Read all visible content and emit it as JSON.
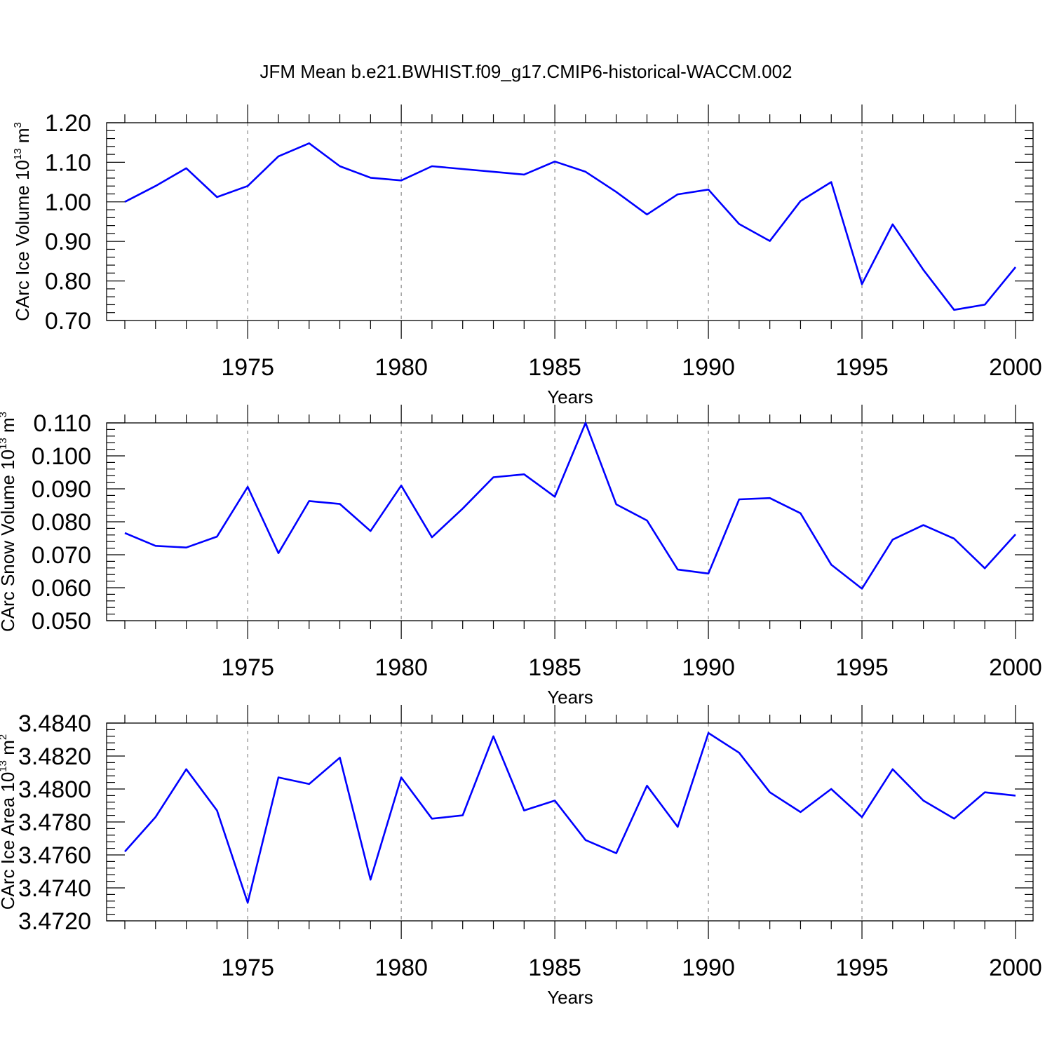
{
  "figure": {
    "title": "JFM Mean b.e21.BWHIST.f09_g17.CMIP6-historical-WACCM.002"
  },
  "colors": {
    "series": "#0000ff",
    "axis": "#000000",
    "grid": "#888888"
  },
  "chart_data": [
    {
      "type": "line",
      "id": "ice-volume",
      "title": "",
      "xlabel": "Years",
      "ylabel": "CArc Ice Volume 10",
      "ylabel_sup": "13",
      "ylabel_unit": "m",
      "ylabel_unit_sup": "3",
      "xlim": [
        1971,
        2000
      ],
      "ylim": [
        0.7,
        1.2
      ],
      "y_decimals": 2,
      "yticks": [
        0.7,
        0.8,
        0.9,
        1.0,
        1.1,
        1.2
      ],
      "xticks": [
        1975,
        1980,
        1985,
        1990,
        1995,
        2000
      ],
      "x_grid": true,
      "x": [
        1971,
        1972,
        1973,
        1974,
        1975,
        1976,
        1977,
        1978,
        1979,
        1980,
        1981,
        1982,
        1983,
        1984,
        1985,
        1986,
        1987,
        1988,
        1989,
        1990,
        1991,
        1992,
        1993,
        1994,
        1995,
        1996,
        1997,
        1998,
        1999,
        2000
      ],
      "series": [
        {
          "name": "CArc Ice Volume",
          "values": [
            1.0,
            1.04,
            1.085,
            1.012,
            1.04,
            1.115,
            1.148,
            1.09,
            1.061,
            1.054,
            1.09,
            1.083,
            1.076,
            1.069,
            1.102,
            1.076,
            1.025,
            0.968,
            1.019,
            1.031,
            0.944,
            0.901,
            1.002,
            1.05,
            0.792,
            0.943,
            0.828,
            0.727,
            0.74,
            0.835
          ]
        }
      ]
    },
    {
      "type": "line",
      "id": "snow-volume",
      "title": "",
      "xlabel": "Years",
      "ylabel": "CArc Snow Volume 10",
      "ylabel_sup": "13",
      "ylabel_unit": "m",
      "ylabel_unit_sup": "3",
      "xlim": [
        1971,
        2000
      ],
      "ylim": [
        0.05,
        0.11
      ],
      "y_decimals": 3,
      "yticks": [
        0.05,
        0.06,
        0.07,
        0.08,
        0.09,
        0.1,
        0.11
      ],
      "xticks": [
        1975,
        1980,
        1985,
        1990,
        1995,
        2000
      ],
      "x_grid": true,
      "x": [
        1971,
        1972,
        1973,
        1974,
        1975,
        1976,
        1977,
        1978,
        1979,
        1980,
        1981,
        1982,
        1983,
        1984,
        1985,
        1986,
        1987,
        1988,
        1989,
        1990,
        1991,
        1992,
        1993,
        1994,
        1995,
        1996,
        1997,
        1998,
        1999,
        2000
      ],
      "series": [
        {
          "name": "CArc Snow Volume",
          "values": [
            0.0766,
            0.0727,
            0.0722,
            0.0755,
            0.0906,
            0.0705,
            0.0863,
            0.0854,
            0.0772,
            0.091,
            0.0753,
            0.084,
            0.0935,
            0.0944,
            0.0876,
            0.11,
            0.0853,
            0.0804,
            0.0655,
            0.0643,
            0.0868,
            0.0872,
            0.0826,
            0.067,
            0.0597,
            0.0746,
            0.079,
            0.0749,
            0.0659,
            0.0762
          ]
        }
      ]
    },
    {
      "type": "line",
      "id": "ice-area",
      "title": "",
      "xlabel": "Years",
      "ylabel": "CArc Ice Area 10",
      "ylabel_sup": "13",
      "ylabel_unit": "m",
      "ylabel_unit_sup": "2",
      "xlim": [
        1971,
        2000
      ],
      "ylim": [
        3.472,
        3.484
      ],
      "y_decimals": 4,
      "yticks": [
        3.472,
        3.474,
        3.476,
        3.478,
        3.48,
        3.482,
        3.484
      ],
      "xticks": [
        1975,
        1980,
        1985,
        1990,
        1995,
        2000
      ],
      "x_grid": true,
      "x": [
        1971,
        1972,
        1973,
        1974,
        1975,
        1976,
        1977,
        1978,
        1979,
        1980,
        1981,
        1982,
        1983,
        1984,
        1985,
        1986,
        1987,
        1988,
        1989,
        1990,
        1991,
        1992,
        1993,
        1994,
        1995,
        1996,
        1997,
        1998,
        1999,
        2000
      ],
      "series": [
        {
          "name": "CArc Ice Area",
          "values": [
            3.4762,
            3.4783,
            3.4812,
            3.4787,
            3.4731,
            3.4807,
            3.4803,
            3.4819,
            3.4745,
            3.4807,
            3.4782,
            3.4784,
            3.4832,
            3.4787,
            3.4793,
            3.4769,
            3.4761,
            3.4802,
            3.4777,
            3.4834,
            3.4822,
            3.4798,
            3.4786,
            3.48,
            3.4783,
            3.4812,
            3.4793,
            3.4782,
            3.4798,
            3.4796
          ]
        }
      ]
    }
  ]
}
